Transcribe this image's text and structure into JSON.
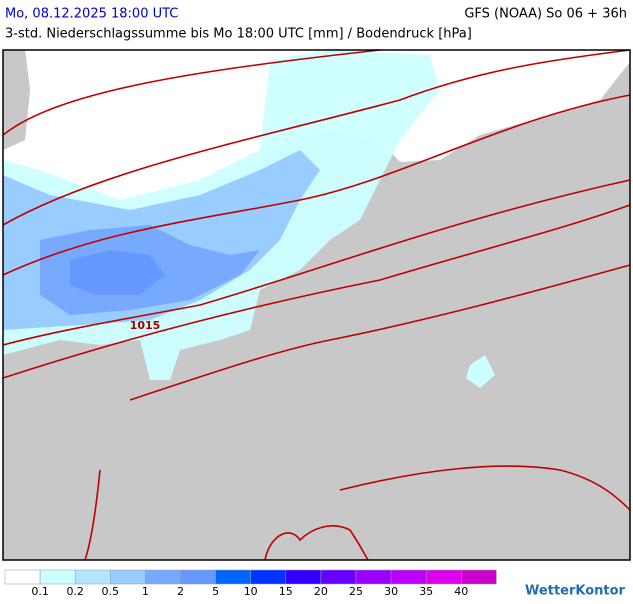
{
  "header": {
    "title": "Mo, 08.12.2025 18:00 UTC",
    "model": "GFS (NOAA) So 06 + 36h",
    "subtitle": "3-std. Niederschlagssumme bis Mo 18:00 UTC [mm] / Bodendruck [hPa]"
  },
  "map": {
    "isobar_label": "1015"
  },
  "legend": {
    "colors": [
      "#ffffff",
      "#ccffff",
      "#b0e4ff",
      "#99ccff",
      "#77aaff",
      "#6699ff",
      "#0066ff",
      "#0033ff",
      "#3300ff",
      "#6600ff",
      "#9900ff",
      "#bb00ff",
      "#dd00ee",
      "#cc00cc"
    ],
    "labels": [
      "0.1",
      "0.2",
      "0.5",
      "1",
      "2",
      "5",
      "10",
      "15",
      "20",
      "25",
      "30",
      "35",
      "40"
    ]
  },
  "brand": "WetterKontor"
}
